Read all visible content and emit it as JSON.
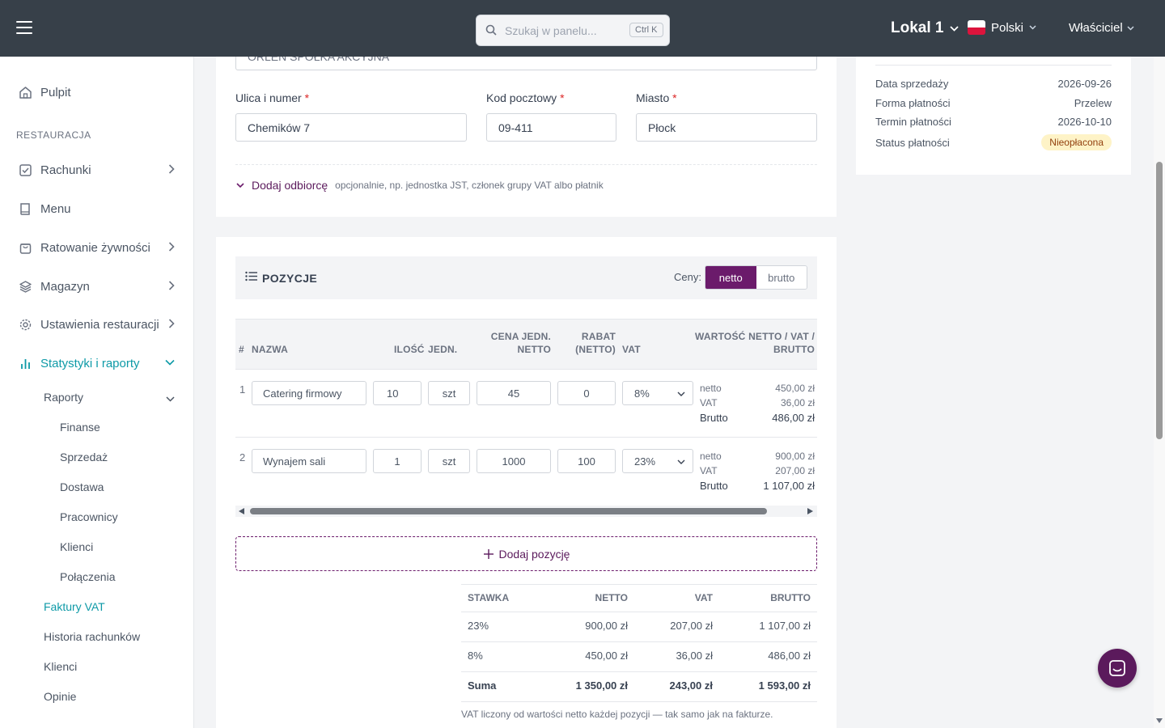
{
  "header": {
    "search_placeholder": "Szukaj w panelu...",
    "search_shortcut": "Ctrl K",
    "location": "Lokal 1",
    "language": "Polski",
    "user": "Właściciel"
  },
  "sidebar": {
    "dashboard": "Pulpit",
    "section_title": "RESTAURACJA",
    "items": [
      {
        "label": "Rachunki"
      },
      {
        "label": "Menu"
      },
      {
        "label": "Ratowanie żywności"
      },
      {
        "label": "Magazyn"
      },
      {
        "label": "Ustawienia restauracji"
      },
      {
        "label": "Statystyki i raporty"
      }
    ],
    "reports": "Raporty",
    "report_items": [
      "Finanse",
      "Sprzedaż",
      "Dostawa",
      "Pracownicy",
      "Klienci",
      "Połączenia"
    ],
    "faktury": "Faktury VAT",
    "history": "Historia rachunków",
    "clients": "Klienci",
    "opinions": "Opinie"
  },
  "address": {
    "company_value": "ORLEN SPÓŁKA AKCYJNA",
    "street_label": "Ulica i numer",
    "street_value": "Chemików 7",
    "postcode_label": "Kod pocztowy",
    "postcode_value": "09-411",
    "city_label": "Miasto",
    "city_value": "Płock",
    "required_mark": "*",
    "add_recipient": "Dodaj odbiorcę",
    "add_recipient_hint": "opcjonalnie, np. jednostka JST, członek grupy VAT albo płatnik"
  },
  "positions": {
    "title": "POZYCJE",
    "prices_label": "Ceny:",
    "toggle_net": "netto",
    "toggle_gross": "brutto",
    "columns": {
      "num": "#",
      "name": "NAZWA",
      "qty": "ILOŚĆ",
      "unit": "JEDN.",
      "price_1": "CENA JEDN.",
      "price_2": "NETTO",
      "discount_1": "RABAT",
      "discount_2": "(NETTO)",
      "vat": "VAT",
      "value_1": "WARTOŚĆ NETTO / VAT /",
      "value_2": "BRUTTO"
    },
    "rows": [
      {
        "num": "1",
        "name": "Catering firmowy",
        "qty": "10",
        "unit": "szt",
        "price": "45",
        "discount": "0",
        "vat": "8%",
        "net_label": "netto",
        "net": "450,00 zł",
        "vat_label": "VAT",
        "vat_amount": "36,00 zł",
        "gross_label": "Brutto",
        "gross": "486,00 zł"
      },
      {
        "num": "2",
        "name": "Wynajem sali",
        "qty": "1",
        "unit": "szt",
        "price": "1000",
        "discount": "100",
        "vat": "23%",
        "net_label": "netto",
        "net": "900,00 zł",
        "vat_label": "VAT",
        "vat_amount": "207,00 zł",
        "gross_label": "Brutto",
        "gross": "1 107,00 zł"
      }
    ],
    "add_position": "Dodaj pozycję"
  },
  "vat_table": {
    "headers": [
      "STAWKA",
      "NETTO",
      "VAT",
      "BRUTTO"
    ],
    "rows": [
      [
        "23%",
        "900,00 zł",
        "207,00 zł",
        "1 107,00 zł"
      ],
      [
        "8%",
        "450,00 zł",
        "36,00 zł",
        "486,00 zł"
      ]
    ],
    "sum": [
      "Suma",
      "1 350,00 zł",
      "243,00 zł",
      "1 593,00 zł"
    ],
    "footnote": "VAT liczony od wartości netto każdej pozycji — tak samo jak na fakturze."
  },
  "summary": {
    "sale_date_label": "Data sprzedaży",
    "sale_date": "2026-09-26",
    "payment_form_label": "Forma płatności",
    "payment_form": "Przelew",
    "payment_due_label": "Termin płatności",
    "payment_due": "2026-10-10",
    "payment_status_label": "Status płatności",
    "payment_status": "Nieopłacona"
  },
  "colors": {
    "accent": "#6b1b6b",
    "teal": "#0e9aa7",
    "topbar": "#374049"
  }
}
